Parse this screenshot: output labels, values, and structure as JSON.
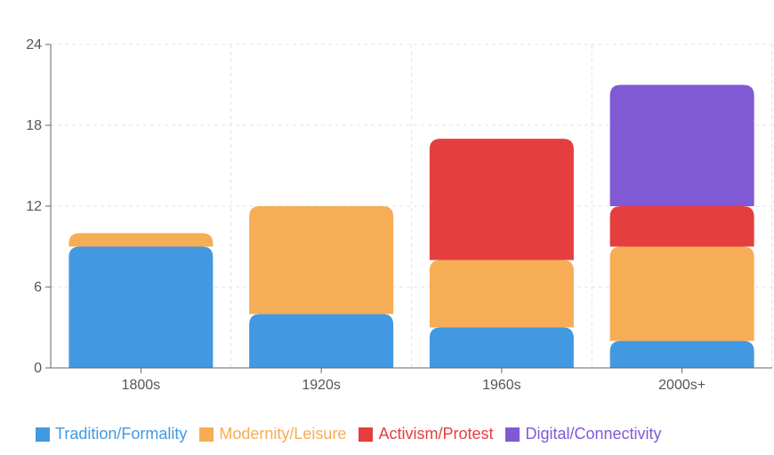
{
  "chart_data": {
    "type": "bar",
    "stacked": true,
    "categories": [
      "1800s",
      "1920s",
      "1960s",
      "2000s+"
    ],
    "series": [
      {
        "name": "Tradition/Formality",
        "color": "#4299e1",
        "values": [
          9,
          4,
          3,
          2
        ]
      },
      {
        "name": "Modernity/Leisure",
        "color": "#f6ad55",
        "values": [
          1,
          8,
          5,
          7
        ]
      },
      {
        "name": "Activism/Protest",
        "color": "#e53e3e",
        "values": [
          0,
          0,
          9,
          3
        ]
      },
      {
        "name": "Digital/Connectivity",
        "color": "#805ad5",
        "values": [
          0,
          0,
          0,
          9
        ]
      }
    ],
    "y_ticks": [
      "0",
      "6",
      "12",
      "18",
      "24"
    ],
    "ylim": [
      0,
      24
    ],
    "grid": true,
    "legend_position": "bottom-left"
  }
}
